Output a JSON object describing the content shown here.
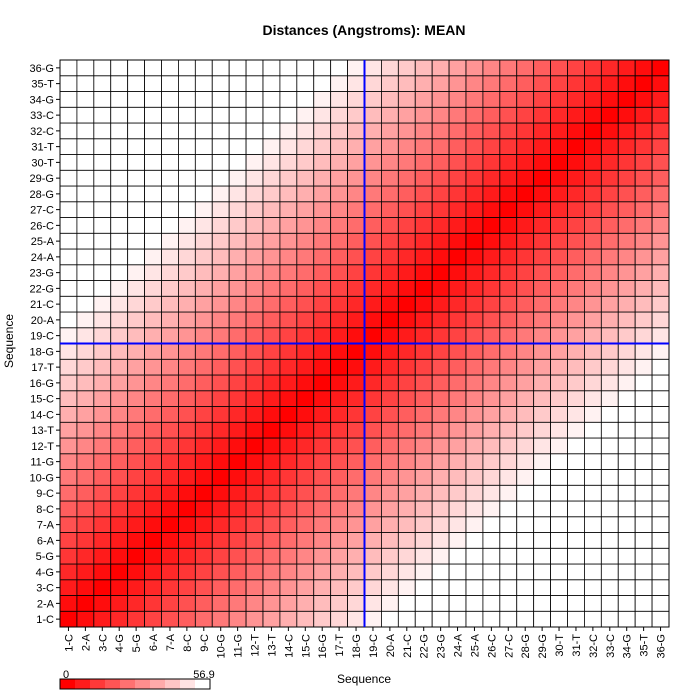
{
  "chart_data": {
    "type": "heatmap",
    "title": "Distances (Angstroms):  MEAN",
    "xlabel": "Sequence",
    "ylabel": "Sequence",
    "sequence_labels": [
      "1-C",
      "2-A",
      "3-C",
      "4-G",
      "5-G",
      "6-A",
      "7-A",
      "8-C",
      "9-C",
      "10-G",
      "11-G",
      "12-T",
      "13-T",
      "14-C",
      "15-C",
      "16-G",
      "17-T",
      "18-G",
      "19-C",
      "20-A",
      "21-C",
      "22-G",
      "23-G",
      "24-A",
      "25-A",
      "26-C",
      "27-C",
      "28-G",
      "29-G",
      "30-T",
      "31-T",
      "32-C",
      "33-C",
      "34-G",
      "35-T",
      "36-G"
    ],
    "color_scale": {
      "min": 0,
      "max": 56.9,
      "min_label": "0",
      "max_label": "56.9",
      "low_color": "#ff0000",
      "high_color": "#ffffff"
    },
    "distance_model": {
      "per_step_angstrom": 3.0,
      "min_distance": 0
    },
    "crosshair": {
      "between_x": [
        "18-G",
        "19-C"
      ],
      "between_y": [
        "18-G",
        "19-C"
      ],
      "color": "#0000ff"
    },
    "grid": true,
    "legend_position": "bottom-left"
  }
}
